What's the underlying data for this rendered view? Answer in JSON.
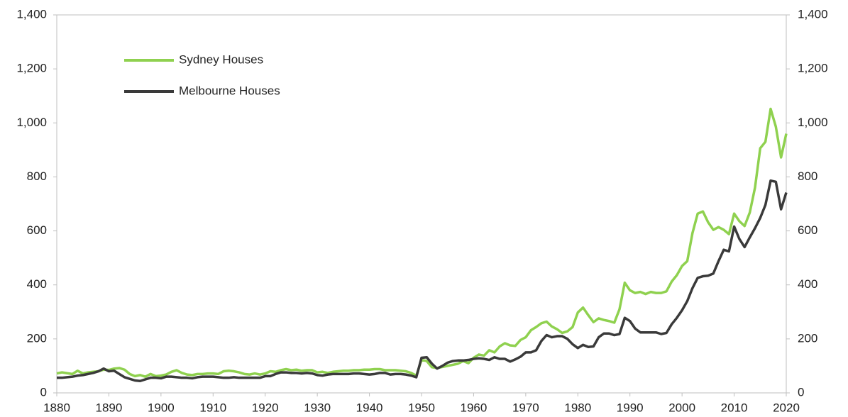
{
  "chart_data": {
    "type": "line",
    "x": [
      1880,
      1881,
      1882,
      1883,
      1884,
      1885,
      1886,
      1887,
      1888,
      1889,
      1890,
      1891,
      1892,
      1893,
      1894,
      1895,
      1896,
      1897,
      1898,
      1899,
      1900,
      1901,
      1902,
      1903,
      1904,
      1905,
      1906,
      1907,
      1908,
      1909,
      1910,
      1911,
      1912,
      1913,
      1914,
      1915,
      1916,
      1917,
      1918,
      1919,
      1920,
      1921,
      1922,
      1923,
      1924,
      1925,
      1926,
      1927,
      1928,
      1929,
      1930,
      1931,
      1932,
      1933,
      1934,
      1935,
      1936,
      1937,
      1938,
      1939,
      1940,
      1941,
      1942,
      1943,
      1944,
      1945,
      1946,
      1947,
      1948,
      1949,
      1950,
      1951,
      1952,
      1953,
      1954,
      1955,
      1956,
      1957,
      1958,
      1959,
      1960,
      1961,
      1962,
      1963,
      1964,
      1965,
      1966,
      1967,
      1968,
      1969,
      1970,
      1971,
      1972,
      1973,
      1974,
      1975,
      1976,
      1977,
      1978,
      1979,
      1980,
      1981,
      1982,
      1983,
      1984,
      1985,
      1986,
      1987,
      1988,
      1989,
      1990,
      1991,
      1992,
      1993,
      1994,
      1995,
      1996,
      1997,
      1998,
      1999,
      2000,
      2001,
      2002,
      2003,
      2004,
      2005,
      2006,
      2007,
      2008,
      2009,
      2010,
      2011,
      2012,
      2013,
      2014,
      2015,
      2016,
      2017,
      2018,
      2019,
      2020
    ],
    "series": [
      {
        "name": "Sydney Houses",
        "color": "#8fd14f",
        "values": [
          72,
          76,
          73,
          70,
          82,
          72,
          76,
          78,
          80,
          86,
          85,
          90,
          92,
          86,
          70,
          62,
          66,
          60,
          70,
          62,
          64,
          68,
          78,
          84,
          74,
          68,
          66,
          70,
          70,
          72,
          72,
          70,
          80,
          82,
          80,
          76,
          70,
          68,
          72,
          68,
          72,
          80,
          78,
          84,
          88,
          84,
          86,
          82,
          84,
          84,
          76,
          78,
          74,
          78,
          80,
          82,
          82,
          84,
          84,
          86,
          86,
          88,
          88,
          84,
          84,
          84,
          82,
          80,
          74,
          64,
          122,
          118,
          95,
          92,
          96,
          100,
          104,
          108,
          118,
          110,
          130,
          142,
          138,
          158,
          150,
          172,
          184,
          176,
          174,
          196,
          206,
          232,
          244,
          258,
          264,
          246,
          236,
          222,
          228,
          244,
          298,
          316,
          288,
          262,
          276,
          270,
          266,
          260,
          310,
          408,
          380,
          370,
          374,
          366,
          374,
          370,
          370,
          376,
          412,
          436,
          470,
          488,
          592,
          664,
          672,
          632,
          604,
          614,
          604,
          588,
          664,
          636,
          618,
          668,
          760,
          906,
          930,
          1052,
          986,
          872,
          960
        ]
      },
      {
        "name": "Melbourne Houses",
        "color": "#3a3a3a",
        "values": [
          56,
          56,
          58,
          60,
          64,
          66,
          70,
          74,
          80,
          90,
          80,
          82,
          70,
          58,
          52,
          46,
          44,
          50,
          56,
          56,
          54,
          60,
          60,
          58,
          56,
          56,
          54,
          58,
          60,
          60,
          60,
          58,
          56,
          56,
          58,
          56,
          56,
          56,
          56,
          56,
          62,
          62,
          70,
          76,
          76,
          74,
          74,
          72,
          74,
          72,
          66,
          64,
          68,
          70,
          70,
          70,
          70,
          72,
          72,
          70,
          68,
          70,
          74,
          74,
          68,
          70,
          70,
          68,
          64,
          58,
          130,
          132,
          108,
          90,
          100,
          112,
          118,
          120,
          120,
          122,
          126,
          128,
          126,
          122,
          132,
          126,
          126,
          116,
          124,
          134,
          150,
          150,
          158,
          192,
          214,
          206,
          210,
          210,
          200,
          180,
          166,
          178,
          170,
          172,
          206,
          220,
          220,
          214,
          218,
          278,
          266,
          238,
          224,
          224,
          224,
          224,
          218,
          222,
          254,
          278,
          306,
          340,
          388,
          426,
          432,
          434,
          442,
          488,
          530,
          524,
          616,
          570,
          540,
          576,
          610,
          648,
          696,
          786,
          782,
          680,
          742
        ]
      }
    ],
    "xlim": [
      1880,
      2020
    ],
    "xticks": [
      1880,
      1890,
      1900,
      1910,
      1920,
      1930,
      1940,
      1950,
      1960,
      1970,
      1980,
      1990,
      2000,
      2010,
      2020
    ],
    "ylim": [
      0,
      1400
    ],
    "yticks": [
      0,
      200,
      400,
      600,
      800,
      {
        "value": 1000,
        "label": "1,000"
      },
      {
        "value": 1200,
        "label": "1,200"
      },
      {
        "value": 1400,
        "label": "1,400"
      }
    ],
    "y2lim": [
      0,
      1400
    ],
    "y2ticks": [
      0,
      200,
      400,
      600,
      800,
      {
        "value": 1000,
        "label": "1,000"
      },
      {
        "value": 1200,
        "label": "1,200"
      },
      {
        "value": 1400,
        "label": "1,400"
      }
    ],
    "grid": false,
    "legend": "upper left"
  }
}
